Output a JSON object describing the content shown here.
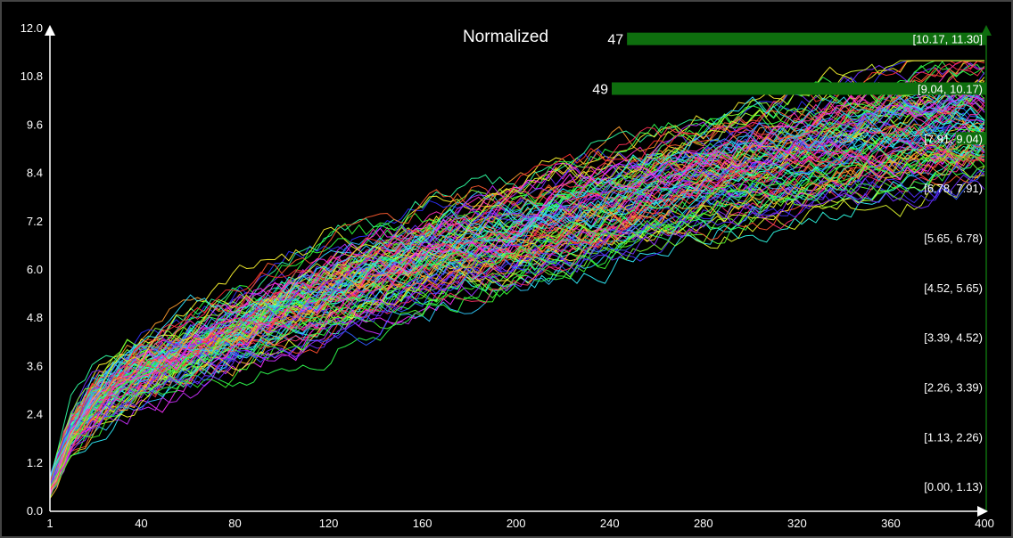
{
  "chart_data": {
    "type": "line",
    "title": "Normalized",
    "series_count": 100,
    "x_range": [
      1,
      400
    ],
    "y_range": [
      0,
      12.0
    ],
    "x_ticks": [
      1,
      40,
      80,
      120,
      160,
      200,
      240,
      280,
      320,
      360,
      400
    ],
    "y_ticks": [
      "0.0",
      "1.2",
      "2.4",
      "3.6",
      "4.8",
      "6.0",
      "7.2",
      "8.4",
      "9.6",
      "10.8",
      "12.0"
    ],
    "envelope": {
      "x": [
        1,
        10,
        20,
        40,
        80,
        120,
        160,
        200,
        240,
        280,
        320,
        360,
        400
      ],
      "mean": [
        0.6,
        2.0,
        2.7,
        3.5,
        4.6,
        5.6,
        6.4,
        7.1,
        7.8,
        8.5,
        9.1,
        9.6,
        10.0
      ]
    },
    "histogram": {
      "bins": [
        {
          "range": "[0.00, 1.13)",
          "count": 0
        },
        {
          "range": "[1.13, 2.26)",
          "count": 0
        },
        {
          "range": "[2.26, 3.39)",
          "count": 0
        },
        {
          "range": "[3.39, 4.52)",
          "count": 0
        },
        {
          "range": "[4.52, 5.65)",
          "count": 0
        },
        {
          "range": "[5.65, 6.78)",
          "count": 0
        },
        {
          "range": "[6.78, 7.91)",
          "count": 0
        },
        {
          "range": "[7.91, 9.04)",
          "count": 4
        },
        {
          "range": "[9.04, 10.17)",
          "count": 49
        },
        {
          "range": "[10.17, 11.30]",
          "count": 47
        }
      ],
      "shown_counts": [
        {
          "bin": 9,
          "label": "47"
        },
        {
          "bin": 8,
          "label": "49"
        }
      ],
      "bar_color": "#0e6e0e"
    },
    "axis_color": "#ffffff",
    "histogram_axis_color": "#0e6e0e",
    "grid": false
  }
}
